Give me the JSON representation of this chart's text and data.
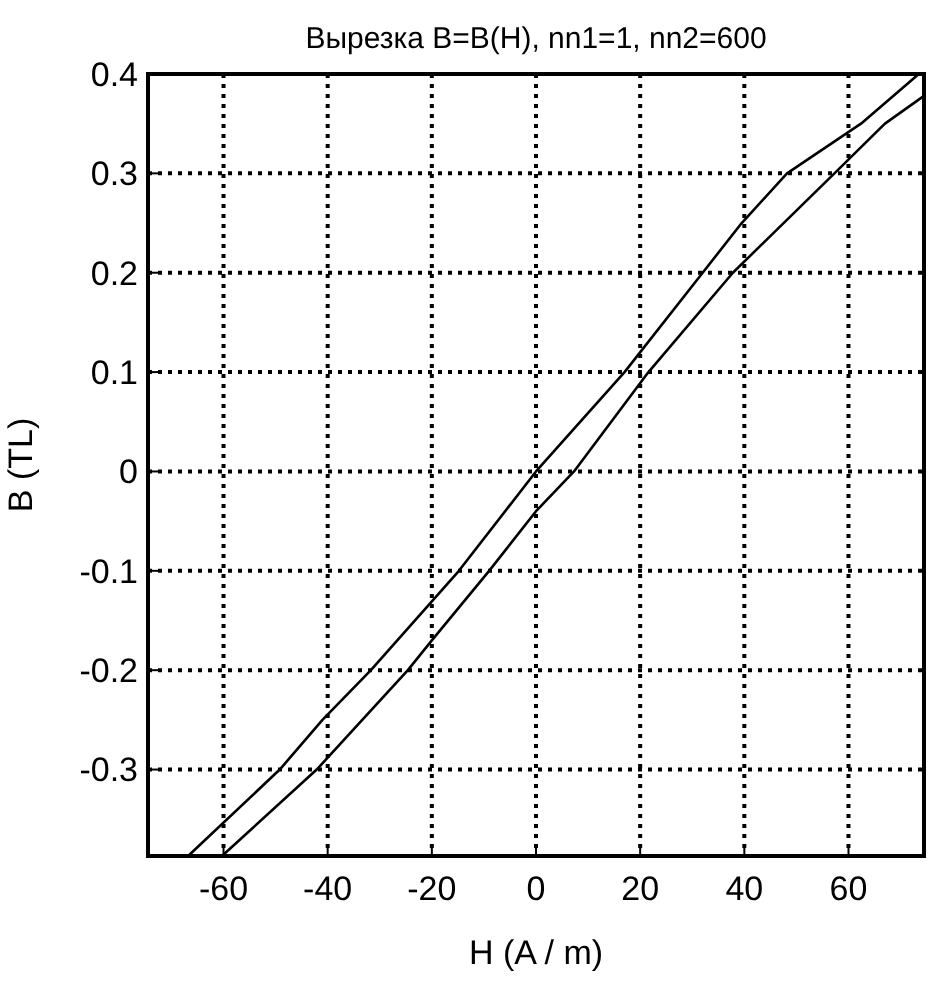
{
  "chart_data": {
    "type": "line",
    "title": "Вырезка B=B(H), nn1=1, nn2=600",
    "xlabel": "H  (A / m)",
    "ylabel": "B (TL)",
    "xlim": [
      -74.5,
      74.5
    ],
    "ylim": [
      -0.387,
      0.4
    ],
    "xticks": [
      -60,
      -40,
      -20,
      0,
      20,
      40,
      60
    ],
    "yticks": [
      0.4,
      0.3,
      0.2,
      0.1,
      0,
      -0.1,
      -0.2,
      -0.3
    ],
    "grid": true,
    "line_style": "solid",
    "series": [
      {
        "color": "#000000",
        "x": [
          -66.8,
          -49.2,
          -41,
          -31.7,
          -14.8,
          0,
          17,
          32,
          39.5,
          48.2,
          62.4,
          73.5
        ],
        "values": [
          -0.387,
          -0.3,
          -0.25,
          -0.2,
          -0.1,
          0,
          0.1,
          0.2,
          0.25,
          0.3,
          0.35,
          0.4
        ]
      },
      {
        "color": "#000000",
        "x": [
          -60.3,
          -42.1,
          -24.6,
          -20,
          -9,
          0,
          7.3,
          21.6,
          37.8,
          57.3,
          67,
          74.5
        ],
        "values": [
          -0.387,
          -0.3,
          -0.2,
          -0.17,
          -0.1,
          -0.04,
          0,
          0.1,
          0.2,
          0.3,
          0.35,
          0.378
        ]
      }
    ]
  }
}
